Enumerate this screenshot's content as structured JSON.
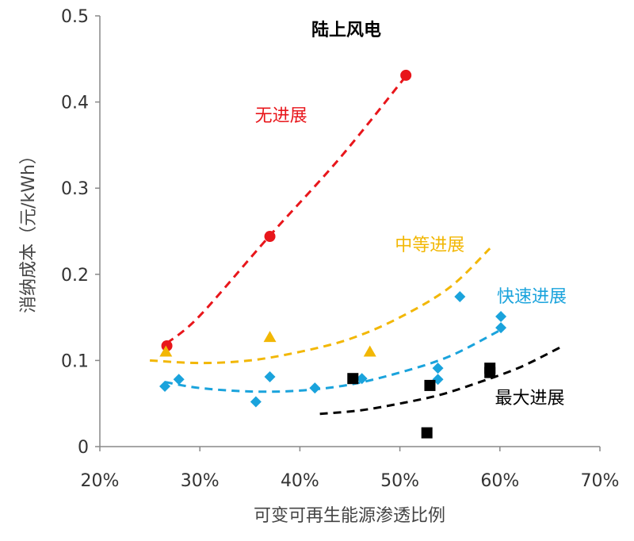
{
  "chart_data": {
    "type": "scatter",
    "title": "陆上风电",
    "xlabel": "可变可再生能源渗透比例",
    "ylabel": "消纳成本（元/kWh）",
    "xlim": [
      20,
      70
    ],
    "ylim": [
      0,
      0.5
    ],
    "x_ticks": [
      "20%",
      "30%",
      "40%",
      "50%",
      "60%",
      "70%"
    ],
    "y_ticks": [
      "0",
      "0.1",
      "0.2",
      "0.3",
      "0.4",
      "0.5"
    ],
    "grid": false,
    "series": [
      {
        "name": "无进展",
        "color": "#e8161b",
        "marker": "circle",
        "points": [
          [
            26.7,
            0.117
          ],
          [
            37.0,
            0.244
          ],
          [
            50.6,
            0.431
          ]
        ],
        "trend": [
          [
            26.7,
            0.12
          ],
          [
            30,
            0.152
          ],
          [
            37,
            0.245
          ],
          [
            44,
            0.335
          ],
          [
            50.6,
            0.43
          ]
        ]
      },
      {
        "name": "中等进展",
        "color": "#f2b705",
        "marker": "triangle",
        "points": [
          [
            26.6,
            0.11
          ],
          [
            37.0,
            0.127
          ],
          [
            47.0,
            0.11
          ]
        ],
        "trend": [
          [
            25,
            0.1
          ],
          [
            30,
            0.097
          ],
          [
            35,
            0.1
          ],
          [
            40,
            0.11
          ],
          [
            45,
            0.125
          ],
          [
            50,
            0.15
          ],
          [
            55,
            0.185
          ],
          [
            59,
            0.23
          ]
        ]
      },
      {
        "name": "快速进展",
        "color": "#1aa3dc",
        "marker": "diamond",
        "points": [
          [
            26.5,
            0.07
          ],
          [
            27.9,
            0.078
          ],
          [
            35.6,
            0.052
          ],
          [
            37.0,
            0.081
          ],
          [
            41.5,
            0.068
          ],
          [
            46.2,
            0.079
          ],
          [
            53.8,
            0.091
          ],
          [
            53.8,
            0.078
          ],
          [
            56.0,
            0.174
          ],
          [
            60.1,
            0.151
          ],
          [
            60.1,
            0.138
          ]
        ],
        "trend": [
          [
            26.5,
            0.075
          ],
          [
            30,
            0.068
          ],
          [
            35,
            0.064
          ],
          [
            40,
            0.065
          ],
          [
            45,
            0.072
          ],
          [
            50,
            0.086
          ],
          [
            55,
            0.105
          ],
          [
            60,
            0.135
          ]
        ]
      },
      {
        "name": "最大进展",
        "color": "#000000",
        "marker": "square",
        "points": [
          [
            45.3,
            0.079
          ],
          [
            53.0,
            0.071
          ],
          [
            52.7,
            0.016
          ],
          [
            59.0,
            0.091
          ],
          [
            59.0,
            0.086
          ]
        ],
        "trend": [
          [
            42,
            0.038
          ],
          [
            46,
            0.042
          ],
          [
            50,
            0.05
          ],
          [
            54,
            0.06
          ],
          [
            58,
            0.075
          ],
          [
            62,
            0.092
          ],
          [
            66,
            0.115
          ]
        ]
      }
    ],
    "annotations": [
      {
        "text": "无进展",
        "color": "#e8161b",
        "at": [
          35.5,
          0.385
        ]
      },
      {
        "text": "中等进展",
        "color": "#f2b705",
        "at": [
          49.5,
          0.235
        ]
      },
      {
        "text": "快速进展",
        "color": "#1aa3dc",
        "at": [
          59.7,
          0.175
        ]
      },
      {
        "text": "最大进展",
        "color": "#000000",
        "at": [
          59.5,
          0.057
        ]
      }
    ]
  }
}
